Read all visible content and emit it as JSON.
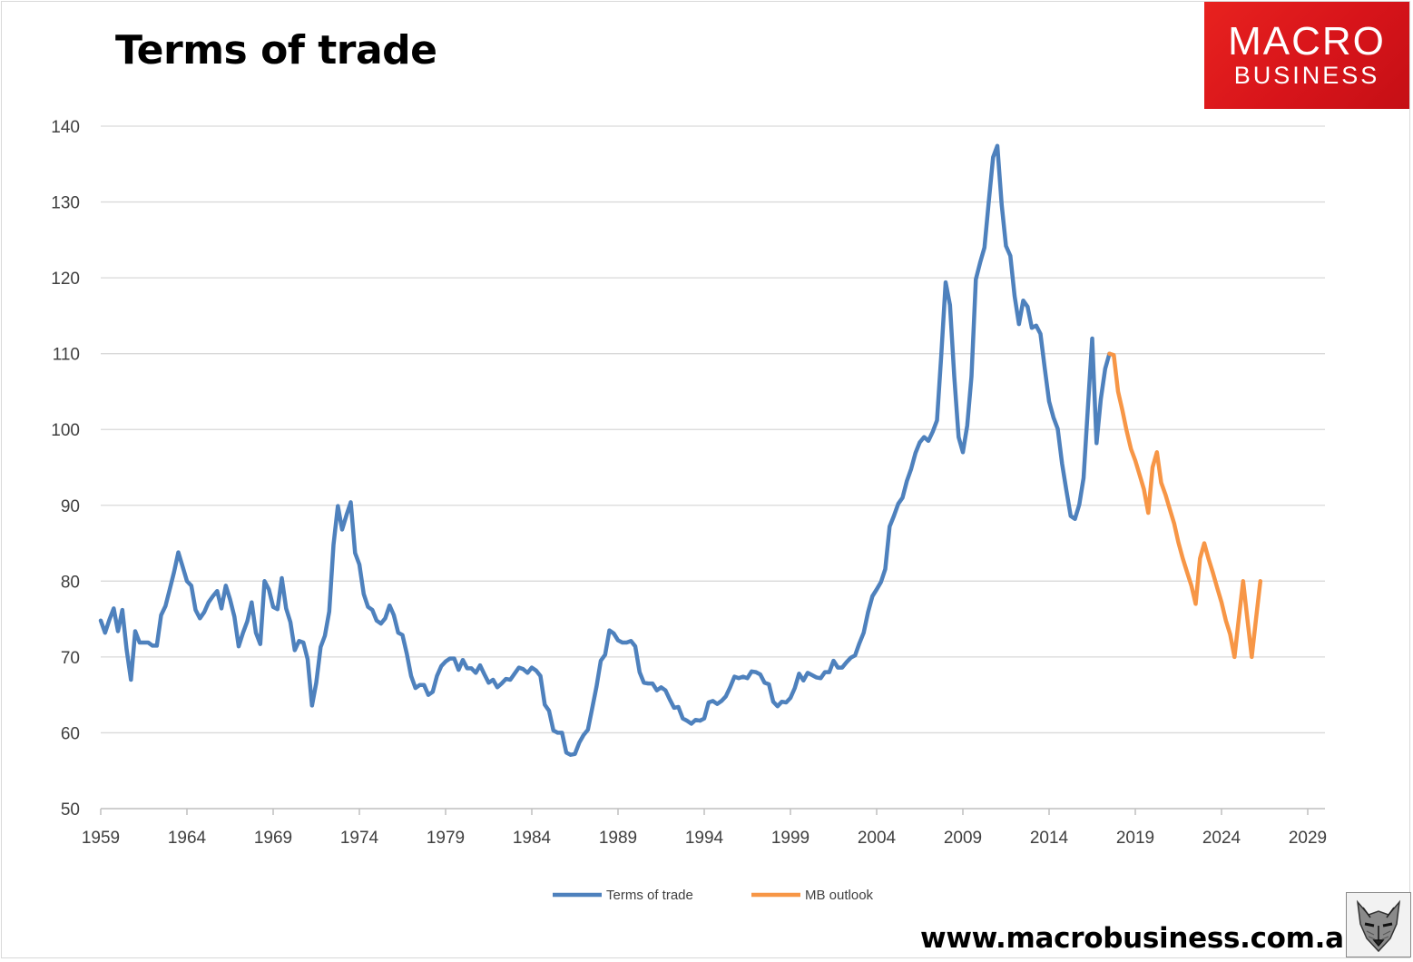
{
  "title": "Terms of trade",
  "logo": {
    "line1": "MACRO",
    "line2": "BUSINESS"
  },
  "website": "www.macrobusiness.com.au",
  "icons": {
    "mascot": "wolf-mascot-icon"
  },
  "colors": {
    "terms_of_trade": "#4e81bd",
    "mb_outlook": "#f79646",
    "logo_bg": "#d7141a",
    "grid": "#d9d9d9"
  },
  "chart_data": {
    "type": "line",
    "title": "Terms of trade",
    "xlabel": "",
    "ylabel": "",
    "xlim": [
      1959,
      2030
    ],
    "ylim": [
      50,
      140
    ],
    "xticks": [
      "1959",
      "1964",
      "1969",
      "1974",
      "1979",
      "1984",
      "1989",
      "1994",
      "1999",
      "2004",
      "2009",
      "2014",
      "2019",
      "2024",
      "2029"
    ],
    "yticks": [
      "140",
      "130",
      "120",
      "110",
      "100",
      "90",
      "80",
      "70",
      "60",
      "50"
    ],
    "grid": "horizontal",
    "legend_position": "bottom",
    "series": [
      {
        "name": "Terms of trade",
        "color": "#4e81bd",
        "points": [
          [
            1959.0,
            74.8
          ],
          [
            1959.25,
            73.2
          ],
          [
            1959.5,
            74.9
          ],
          [
            1959.75,
            76.4
          ],
          [
            1960.0,
            73.4
          ],
          [
            1960.25,
            76.2
          ],
          [
            1960.5,
            71.0
          ],
          [
            1960.75,
            67.0
          ],
          [
            1961.0,
            73.4
          ],
          [
            1961.25,
            71.9
          ],
          [
            1961.5,
            71.9
          ],
          [
            1961.75,
            71.9
          ],
          [
            1962.0,
            71.5
          ],
          [
            1962.25,
            71.5
          ],
          [
            1962.5,
            75.5
          ],
          [
            1962.75,
            76.7
          ],
          [
            1963.0,
            78.9
          ],
          [
            1963.25,
            81.2
          ],
          [
            1963.5,
            83.8
          ],
          [
            1963.75,
            81.9
          ],
          [
            1964.0,
            80.0
          ],
          [
            1964.25,
            79.4
          ],
          [
            1964.5,
            76.2
          ],
          [
            1964.75,
            75.1
          ],
          [
            1965.0,
            75.9
          ],
          [
            1965.25,
            77.2
          ],
          [
            1965.5,
            78.0
          ],
          [
            1965.75,
            78.7
          ],
          [
            1966.0,
            76.4
          ],
          [
            1966.25,
            79.4
          ],
          [
            1966.5,
            77.6
          ],
          [
            1966.75,
            75.3
          ],
          [
            1967.0,
            71.4
          ],
          [
            1967.25,
            73.2
          ],
          [
            1967.5,
            74.7
          ],
          [
            1967.75,
            77.2
          ],
          [
            1968.0,
            73.2
          ],
          [
            1968.25,
            71.7
          ],
          [
            1968.5,
            80.0
          ],
          [
            1968.75,
            78.9
          ],
          [
            1969.0,
            76.6
          ],
          [
            1969.25,
            76.3
          ],
          [
            1969.5,
            80.4
          ],
          [
            1969.75,
            76.4
          ],
          [
            1970.0,
            74.6
          ],
          [
            1970.25,
            70.9
          ],
          [
            1970.5,
            72.1
          ],
          [
            1970.75,
            71.9
          ],
          [
            1971.0,
            69.7
          ],
          [
            1971.25,
            63.6
          ],
          [
            1971.5,
            66.6
          ],
          [
            1971.75,
            71.3
          ],
          [
            1972.0,
            72.8
          ],
          [
            1972.25,
            76.0
          ],
          [
            1972.5,
            84.8
          ],
          [
            1972.75,
            89.9
          ],
          [
            1973.0,
            86.8
          ],
          [
            1973.25,
            88.7
          ],
          [
            1973.5,
            90.4
          ],
          [
            1973.75,
            83.7
          ],
          [
            1974.0,
            82.2
          ],
          [
            1974.25,
            78.3
          ],
          [
            1974.5,
            76.6
          ],
          [
            1974.75,
            76.2
          ],
          [
            1975.0,
            74.8
          ],
          [
            1975.25,
            74.4
          ],
          [
            1975.5,
            75.1
          ],
          [
            1975.75,
            76.8
          ],
          [
            1976.0,
            75.5
          ],
          [
            1976.25,
            73.2
          ],
          [
            1976.5,
            72.9
          ],
          [
            1976.75,
            70.4
          ],
          [
            1977.0,
            67.5
          ],
          [
            1977.25,
            65.9
          ],
          [
            1977.5,
            66.3
          ],
          [
            1977.75,
            66.3
          ],
          [
            1978.0,
            65.0
          ],
          [
            1978.25,
            65.4
          ],
          [
            1978.5,
            67.5
          ],
          [
            1978.75,
            68.8
          ],
          [
            1979.0,
            69.4
          ],
          [
            1979.25,
            69.8
          ],
          [
            1979.5,
            69.8
          ],
          [
            1979.75,
            68.3
          ],
          [
            1980.0,
            69.6
          ],
          [
            1980.25,
            68.5
          ],
          [
            1980.5,
            68.5
          ],
          [
            1980.75,
            67.9
          ],
          [
            1981.0,
            68.9
          ],
          [
            1981.25,
            67.7
          ],
          [
            1981.5,
            66.6
          ],
          [
            1981.75,
            67.0
          ],
          [
            1982.0,
            66.0
          ],
          [
            1982.25,
            66.5
          ],
          [
            1982.5,
            67.1
          ],
          [
            1982.75,
            67.0
          ],
          [
            1983.0,
            67.8
          ],
          [
            1983.25,
            68.6
          ],
          [
            1983.5,
            68.4
          ],
          [
            1983.75,
            67.9
          ],
          [
            1984.0,
            68.6
          ],
          [
            1984.25,
            68.2
          ],
          [
            1984.5,
            67.5
          ],
          [
            1984.75,
            63.7
          ],
          [
            1985.0,
            62.9
          ],
          [
            1985.25,
            60.3
          ],
          [
            1985.5,
            60.0
          ],
          [
            1985.75,
            60.0
          ],
          [
            1986.0,
            57.4
          ],
          [
            1986.25,
            57.1
          ],
          [
            1986.5,
            57.2
          ],
          [
            1986.75,
            58.7
          ],
          [
            1987.0,
            59.7
          ],
          [
            1987.25,
            60.4
          ],
          [
            1987.5,
            63.2
          ],
          [
            1987.75,
            66.1
          ],
          [
            1988.0,
            69.5
          ],
          [
            1988.25,
            70.3
          ],
          [
            1988.5,
            73.5
          ],
          [
            1988.75,
            73.1
          ],
          [
            1989.0,
            72.2
          ],
          [
            1989.25,
            71.9
          ],
          [
            1989.5,
            71.9
          ],
          [
            1989.75,
            72.1
          ],
          [
            1990.0,
            71.4
          ],
          [
            1990.25,
            68.0
          ],
          [
            1990.5,
            66.6
          ],
          [
            1990.75,
            66.5
          ],
          [
            1991.0,
            66.5
          ],
          [
            1991.25,
            65.6
          ],
          [
            1991.5,
            66.0
          ],
          [
            1991.75,
            65.6
          ],
          [
            1992.0,
            64.4
          ],
          [
            1992.25,
            63.3
          ],
          [
            1992.5,
            63.4
          ],
          [
            1992.75,
            61.9
          ],
          [
            1993.0,
            61.6
          ],
          [
            1993.25,
            61.2
          ],
          [
            1993.5,
            61.7
          ],
          [
            1993.75,
            61.6
          ],
          [
            1994.0,
            61.9
          ],
          [
            1994.25,
            64.0
          ],
          [
            1994.5,
            64.2
          ],
          [
            1994.75,
            63.8
          ],
          [
            1995.0,
            64.2
          ],
          [
            1995.25,
            64.8
          ],
          [
            1995.5,
            66.0
          ],
          [
            1995.75,
            67.4
          ],
          [
            1996.0,
            67.2
          ],
          [
            1996.25,
            67.4
          ],
          [
            1996.5,
            67.2
          ],
          [
            1996.75,
            68.1
          ],
          [
            1997.0,
            68.0
          ],
          [
            1997.25,
            67.7
          ],
          [
            1997.5,
            66.6
          ],
          [
            1997.75,
            66.4
          ],
          [
            1998.0,
            64.1
          ],
          [
            1998.25,
            63.5
          ],
          [
            1998.5,
            64.1
          ],
          [
            1998.75,
            64.0
          ],
          [
            1999.0,
            64.6
          ],
          [
            1999.25,
            65.9
          ],
          [
            1999.5,
            67.8
          ],
          [
            1999.75,
            66.9
          ],
          [
            2000.0,
            67.9
          ],
          [
            2000.25,
            67.6
          ],
          [
            2000.5,
            67.3
          ],
          [
            2000.75,
            67.2
          ],
          [
            2001.0,
            68.0
          ],
          [
            2001.25,
            68.0
          ],
          [
            2001.5,
            69.5
          ],
          [
            2001.75,
            68.6
          ],
          [
            2002.0,
            68.6
          ],
          [
            2002.25,
            69.3
          ],
          [
            2002.5,
            69.9
          ],
          [
            2002.75,
            70.2
          ],
          [
            2003.0,
            71.8
          ],
          [
            2003.25,
            73.2
          ],
          [
            2003.5,
            75.9
          ],
          [
            2003.75,
            78.0
          ],
          [
            2004.0,
            78.9
          ],
          [
            2004.25,
            79.9
          ],
          [
            2004.5,
            81.6
          ],
          [
            2004.75,
            87.2
          ],
          [
            2005.0,
            88.6
          ],
          [
            2005.25,
            90.2
          ],
          [
            2005.5,
            91.0
          ],
          [
            2005.75,
            93.2
          ],
          [
            2006.0,
            94.8
          ],
          [
            2006.25,
            96.9
          ],
          [
            2006.5,
            98.3
          ],
          [
            2006.75,
            99.0
          ],
          [
            2007.0,
            98.5
          ],
          [
            2007.25,
            99.7
          ],
          [
            2007.5,
            101.2
          ],
          [
            2007.75,
            110.0
          ],
          [
            2008.0,
            119.4
          ],
          [
            2008.25,
            116.4
          ],
          [
            2008.5,
            107.0
          ],
          [
            2008.75,
            99.0
          ],
          [
            2009.0,
            97.0
          ],
          [
            2009.25,
            100.5
          ],
          [
            2009.5,
            107.0
          ],
          [
            2009.75,
            119.8
          ],
          [
            2010.0,
            122.0
          ],
          [
            2010.25,
            124.0
          ],
          [
            2010.5,
            130.0
          ],
          [
            2010.75,
            135.9
          ],
          [
            2011.0,
            137.4
          ],
          [
            2011.25,
            129.6
          ],
          [
            2011.5,
            124.2
          ],
          [
            2011.75,
            122.9
          ],
          [
            2012.0,
            117.6
          ],
          [
            2012.25,
            113.9
          ],
          [
            2012.5,
            117.0
          ],
          [
            2012.75,
            116.2
          ],
          [
            2013.0,
            113.4
          ],
          [
            2013.25,
            113.7
          ],
          [
            2013.5,
            112.6
          ],
          [
            2013.75,
            108.0
          ],
          [
            2014.0,
            103.7
          ],
          [
            2014.25,
            101.6
          ],
          [
            2014.5,
            100.1
          ],
          [
            2014.75,
            95.5
          ],
          [
            2015.0,
            92.0
          ],
          [
            2015.25,
            88.6
          ],
          [
            2015.5,
            88.2
          ],
          [
            2015.75,
            90.1
          ],
          [
            2016.0,
            93.6
          ],
          [
            2016.25,
            103.0
          ],
          [
            2016.5,
            112.0
          ],
          [
            2016.75,
            98.2
          ],
          [
            2017.0,
            104.0
          ],
          [
            2017.25,
            108.0
          ],
          [
            2017.5,
            110.0
          ]
        ]
      },
      {
        "name": "MB outlook",
        "color": "#f79646",
        "points": [
          [
            2017.5,
            110.0
          ],
          [
            2017.75,
            109.8
          ],
          [
            2018.0,
            105.0
          ],
          [
            2018.25,
            102.5
          ],
          [
            2018.5,
            99.8
          ],
          [
            2018.75,
            97.4
          ],
          [
            2019.0,
            95.9
          ],
          [
            2019.25,
            94.0
          ],
          [
            2019.5,
            92.1
          ],
          [
            2019.75,
            89.0
          ],
          [
            2020.0,
            95.0
          ],
          [
            2020.25,
            97.0
          ],
          [
            2020.5,
            93.0
          ],
          [
            2020.75,
            91.4
          ],
          [
            2021.0,
            89.5
          ],
          [
            2021.25,
            87.6
          ],
          [
            2021.5,
            85.1
          ],
          [
            2021.75,
            83.0
          ],
          [
            2022.0,
            81.2
          ],
          [
            2022.25,
            79.4
          ],
          [
            2022.5,
            77.0
          ],
          [
            2022.75,
            83.0
          ],
          [
            2023.0,
            85.0
          ],
          [
            2023.25,
            82.9
          ],
          [
            2023.5,
            81.1
          ],
          [
            2023.75,
            79.1
          ],
          [
            2024.0,
            77.2
          ],
          [
            2024.25,
            74.8
          ],
          [
            2024.5,
            73.0
          ],
          [
            2024.75,
            70.0
          ],
          [
            2025.0,
            75.0
          ],
          [
            2025.25,
            80.0
          ],
          [
            2025.5,
            75.0
          ],
          [
            2025.75,
            70.0
          ],
          [
            2026.0,
            75.0
          ],
          [
            2026.25,
            80.0
          ]
        ]
      }
    ]
  }
}
